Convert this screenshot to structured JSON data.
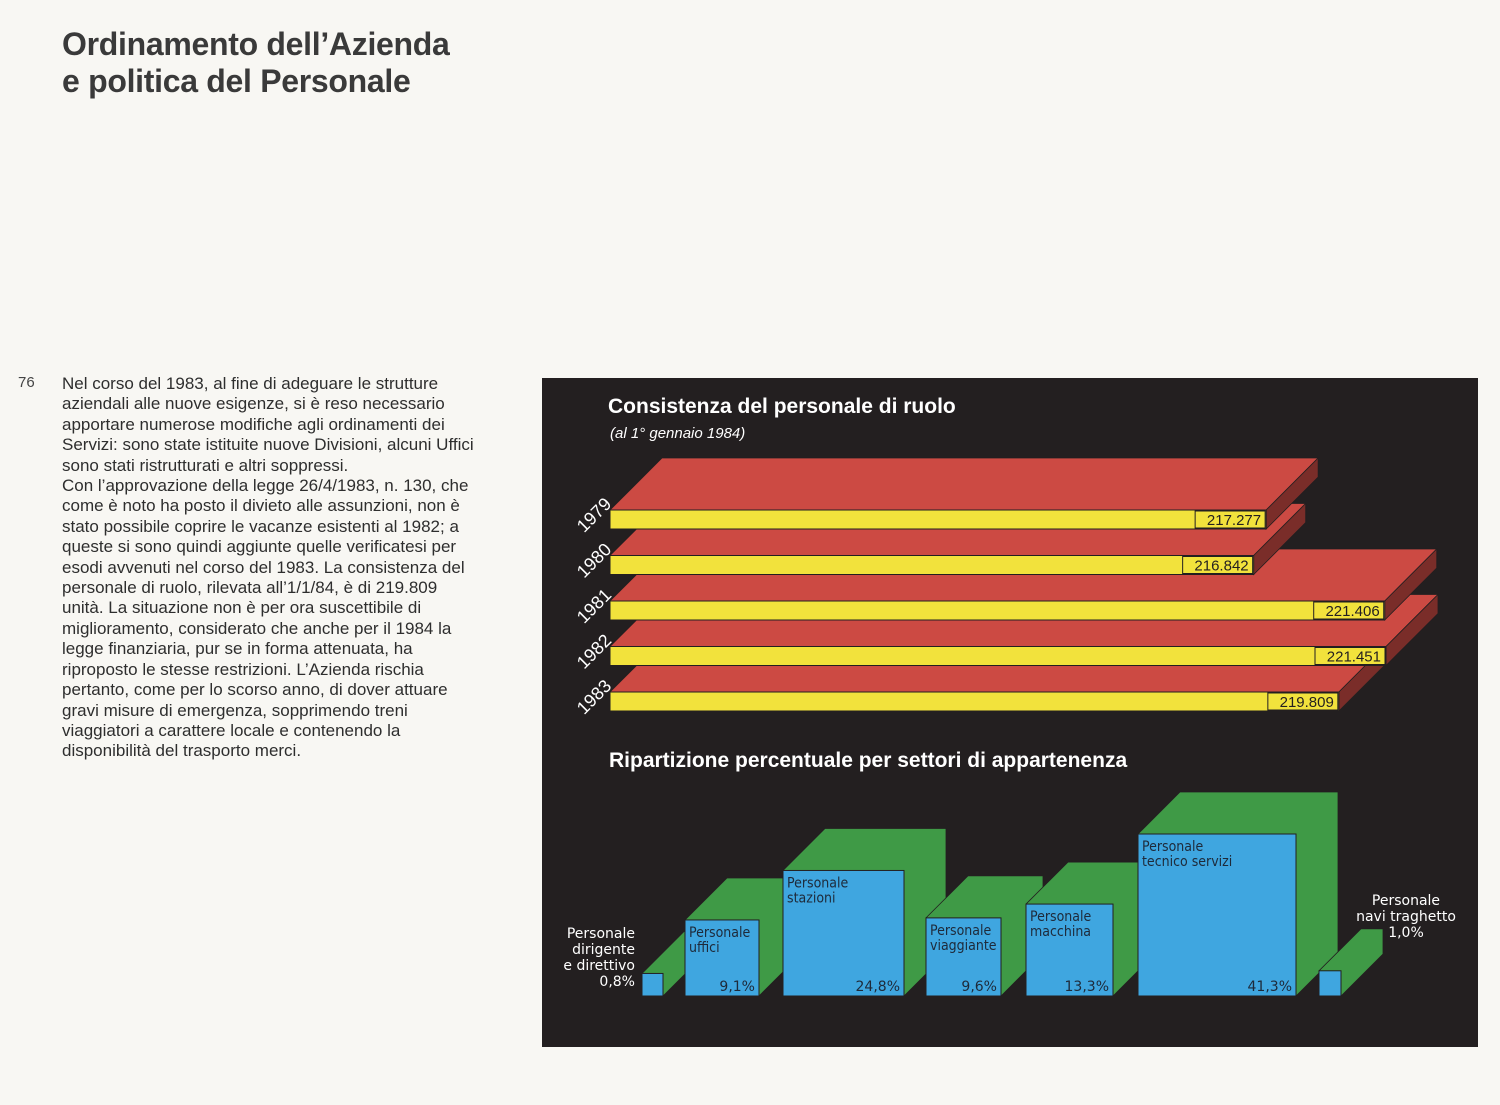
{
  "page": {
    "title_lines": [
      "Ordinamento dell’Azienda",
      "e politica del Personale"
    ],
    "page_number": "76",
    "body_lines": [
      "Nel corso del 1983, al fine di adeguare le strutture",
      "aziendali alle nuove esigenze, si è reso necessario",
      "apportare numerose modifiche agli ordinamenti dei",
      "Servizi: sono state istituite nuove Divisioni, alcuni Uffici",
      "sono stati ristrutturati e altri soppressi.",
      "Con l’approvazione della legge 26/4/1983, n. 130, che",
      "come è noto ha posto il divieto alle assunzioni, non è",
      "stato possibile coprire le vacanze esistenti al 1982; a",
      "queste si sono quindi aggiunte quelle verificatesi per",
      "esodi avvenuti nel corso del 1983. La consistenza del",
      "personale di ruolo, rilevata all’1/1/84, è di 219.809",
      "unità. La situazione non è per ora suscettibile di",
      "miglioramento, considerato che anche per il 1984 la",
      "legge finanziaria, pur se in forma attenuata, ha",
      "riproposto le stesse restrizioni. L’Azienda rischia",
      "pertanto, come per lo scorso anno, di dover attuare",
      "gravi misure di emergenza, sopprimendo treni",
      "viaggiatori a carattere locale e contenendo la",
      "disponibilità del trasporto merci."
    ]
  },
  "colors": {
    "panel": "#231f20",
    "bar_face": "#f2e23c",
    "bar_top": "#cc4a43",
    "block_face": "#3fa6e0",
    "block_back": "#3f9a46"
  },
  "chart_data": [
    {
      "type": "bar",
      "orientation": "horizontal",
      "title": "Consistenza del personale di ruolo",
      "subtitle": "(al 1° gennaio 1984)",
      "categories": [
        "1979",
        "1980",
        "1981",
        "1982",
        "1983"
      ],
      "values": [
        217277,
        216842,
        221406,
        221451,
        219809
      ],
      "value_labels": [
        "217.277",
        "216.842",
        "221.406",
        "221.451",
        "219.809"
      ]
    },
    {
      "type": "bar",
      "title": "Ripartizione percentuale per settori di appartenenza",
      "categories": [
        [
          "Personale",
          "dirigente",
          "e direttivo"
        ],
        [
          "Personale",
          "uffici"
        ],
        [
          "Personale",
          "stazioni"
        ],
        [
          "Personale",
          "viaggiante"
        ],
        [
          "Personale",
          "macchina"
        ],
        [
          "Personale",
          "tecnico servizi"
        ],
        [
          "Personale",
          "navi traghetto"
        ]
      ],
      "values": [
        0.8,
        9.1,
        24.8,
        9.6,
        13.3,
        41.3,
        1.0
      ],
      "value_labels": [
        "0,8%",
        "9,1%",
        "24,8%",
        "9,6%",
        "13,3%",
        "41,3%",
        "1,0%"
      ]
    }
  ]
}
